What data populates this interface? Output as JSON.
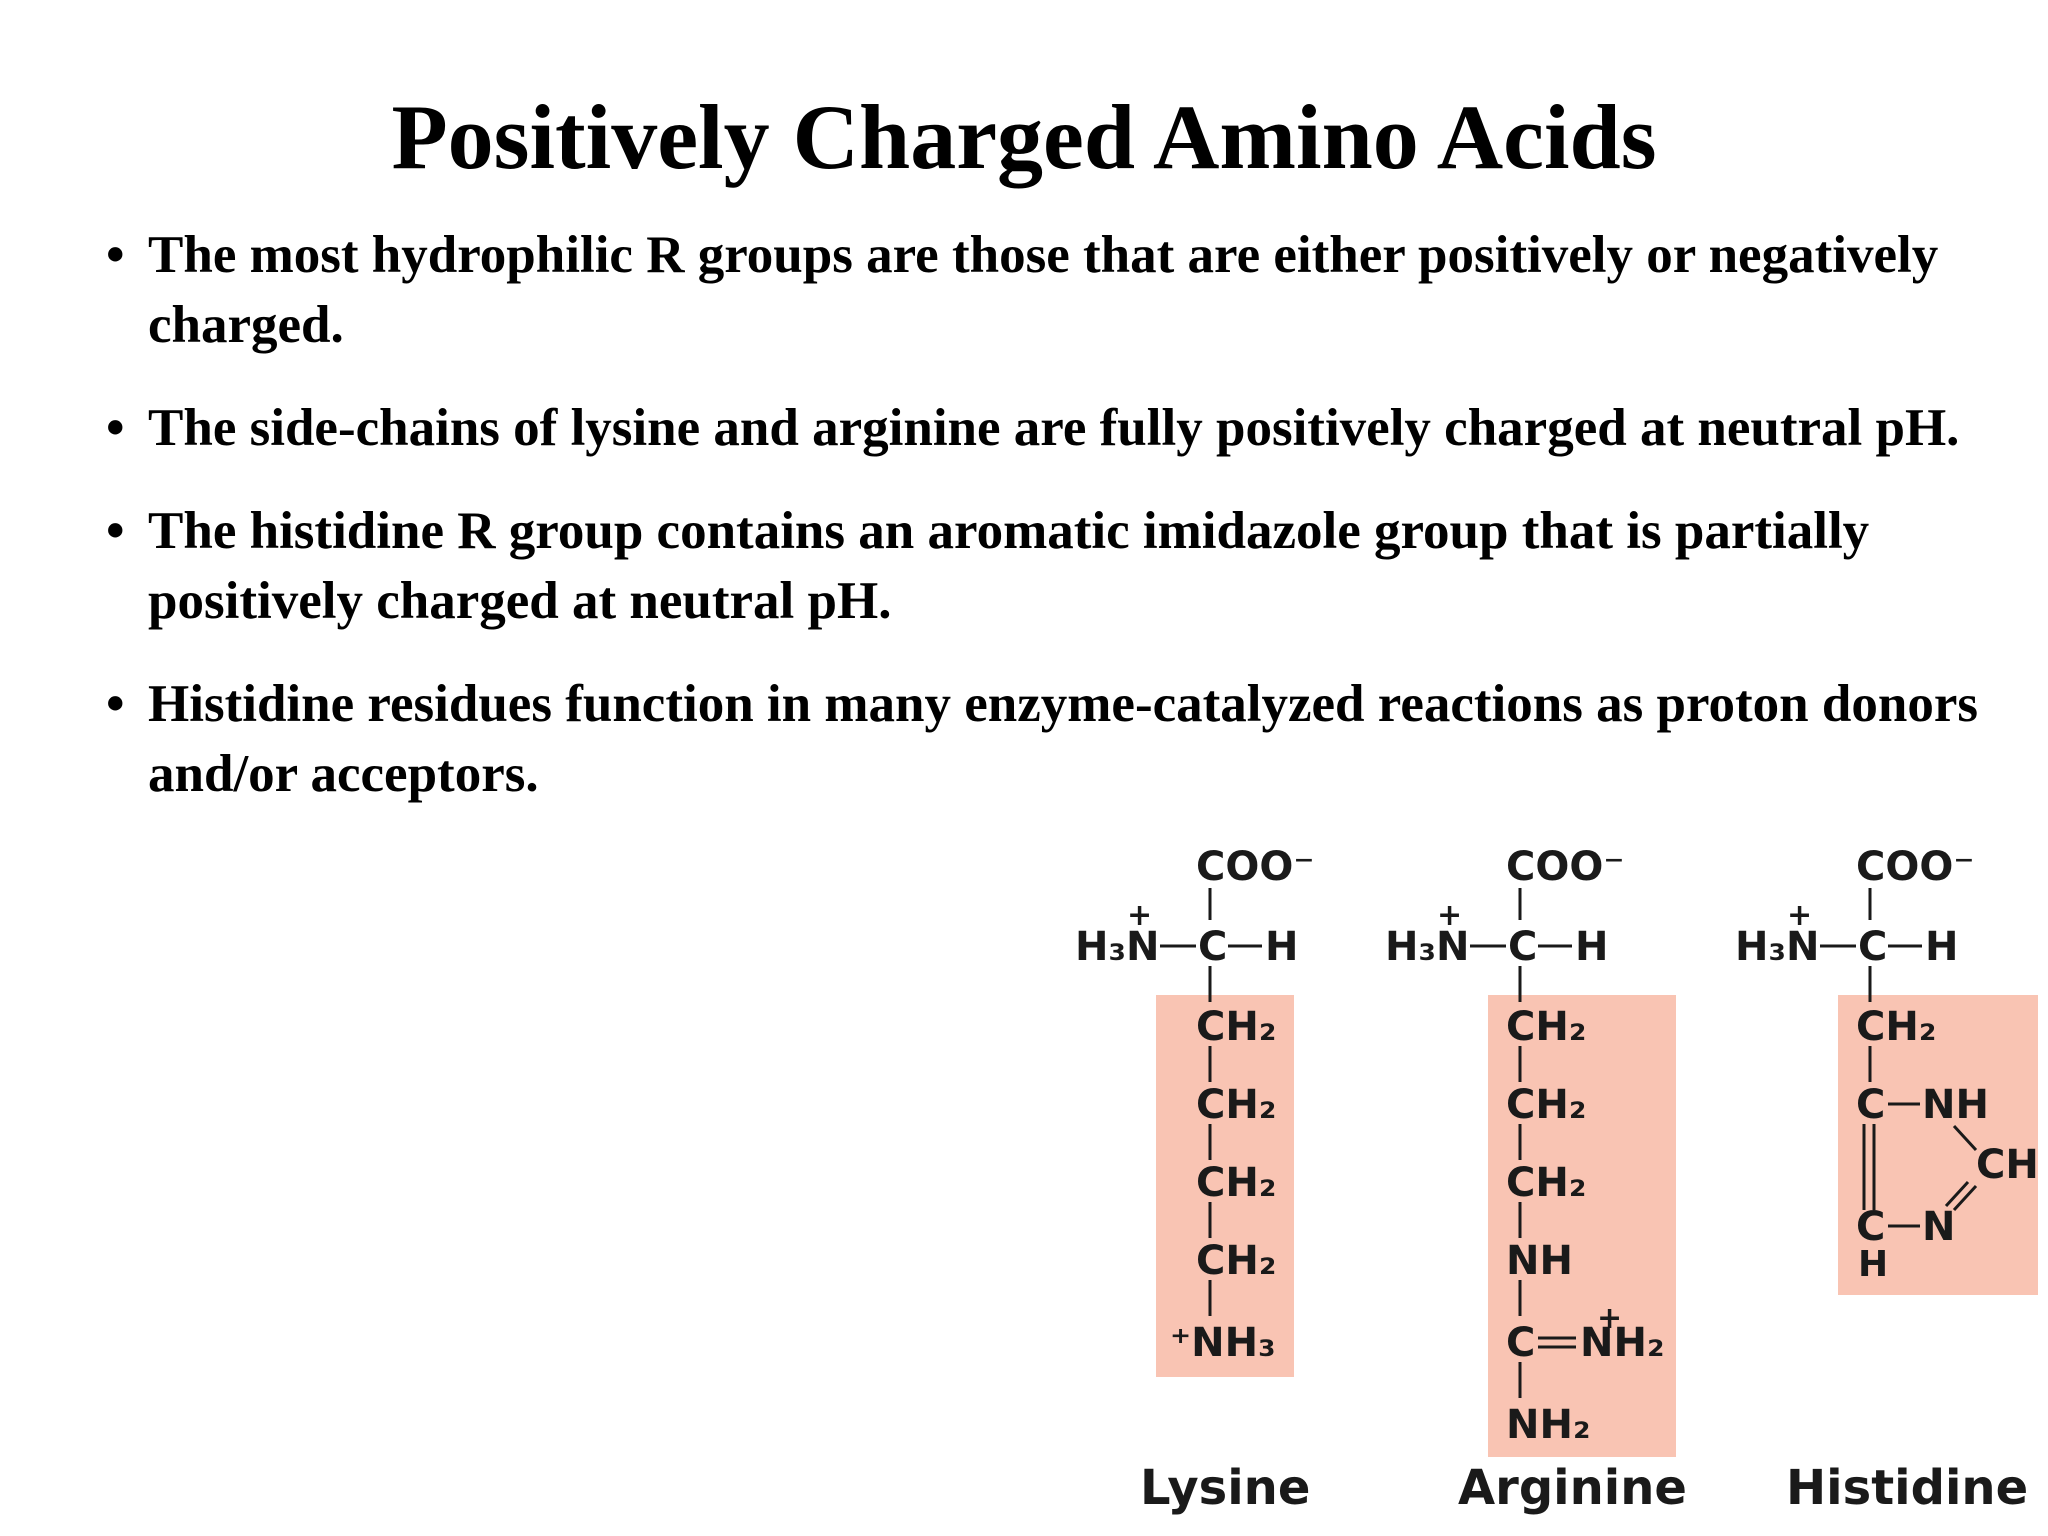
{
  "title": "Positively Charged Amino Acids",
  "bullets": [
    "The most hydrophilic R groups are those that are either positively or negatively charged.",
    "The side-chains of lysine and arginine are fully positively charged at neutral pH.",
    "The histidine R group contains an aromatic imidazole group that is partially positively charged at neutral pH.",
    "Histidine residues function in many enzyme-catalyzed reactions as proton donors and/or acceptors."
  ],
  "bullet_symbol": "•",
  "highlight_color": "#f9c4b3",
  "structures": {
    "common": {
      "carboxylate": "COO⁻",
      "amino": "H₃N",
      "amino_charge": "+",
      "alpha_c": "C",
      "alpha_h": "H"
    },
    "lysine": {
      "name": "Lysine",
      "chain": [
        "CH₂",
        "CH₂",
        "CH₂",
        "CH₂"
      ],
      "terminal": "⁺NH₃"
    },
    "arginine": {
      "name": "Arginine",
      "chain": [
        "CH₂",
        "CH₂",
        "CH₂",
        "NH"
      ],
      "guanidino_c": "C",
      "guanidino_nh2_charged": "NH₂",
      "charge": "+",
      "terminal": "NH₂"
    },
    "histidine": {
      "name": "Histidine",
      "chain": [
        "CH₂"
      ],
      "ring_c1": "C",
      "ring_nh": "NH",
      "ring_ch": "CH",
      "ring_c2": "C",
      "ring_n": "N",
      "ring_h": "H"
    }
  }
}
